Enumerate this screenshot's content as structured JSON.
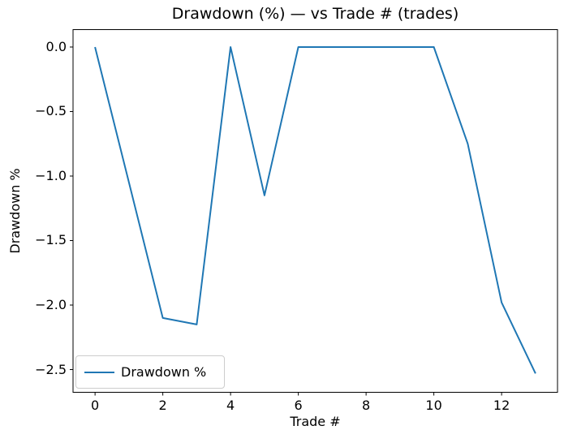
{
  "window": {
    "background": "#ffffff",
    "text_color": "#000000"
  },
  "chart_data": {
    "type": "line",
    "title": "Drawdown (%) — vs Trade # (trades)",
    "xlabel": "Trade #",
    "ylabel": "Drawdown %",
    "x": [
      0,
      1,
      2,
      3,
      4,
      5,
      6,
      7,
      8,
      9,
      10,
      11,
      12,
      13
    ],
    "series": [
      {
        "name": "Drawdown %",
        "color": "#1f77b4",
        "values": [
          0.0,
          -1.05,
          -2.1,
          -2.15,
          0.0,
          -1.15,
          0.0,
          0.0,
          0.0,
          0.0,
          0.0,
          -0.75,
          -1.98,
          -2.53
        ]
      }
    ],
    "xlim": [
      -0.65,
      13.65
    ],
    "ylim": [
      -2.676,
      0.135
    ],
    "xticks": {
      "values": [
        0,
        2,
        4,
        6,
        8,
        10,
        12
      ],
      "labels": [
        "0",
        "2",
        "4",
        "6",
        "8",
        "10",
        "12"
      ]
    },
    "yticks": {
      "values": [
        0,
        -0.5,
        -1,
        -1.5,
        -2,
        -2.5
      ],
      "labels": [
        "0.0",
        "−0.5",
        "−1.0",
        "−1.5",
        "−2.0",
        "−2.5"
      ]
    },
    "grid": false,
    "legend": {
      "position": "lower left",
      "entries": [
        "Drawdown %"
      ]
    }
  }
}
